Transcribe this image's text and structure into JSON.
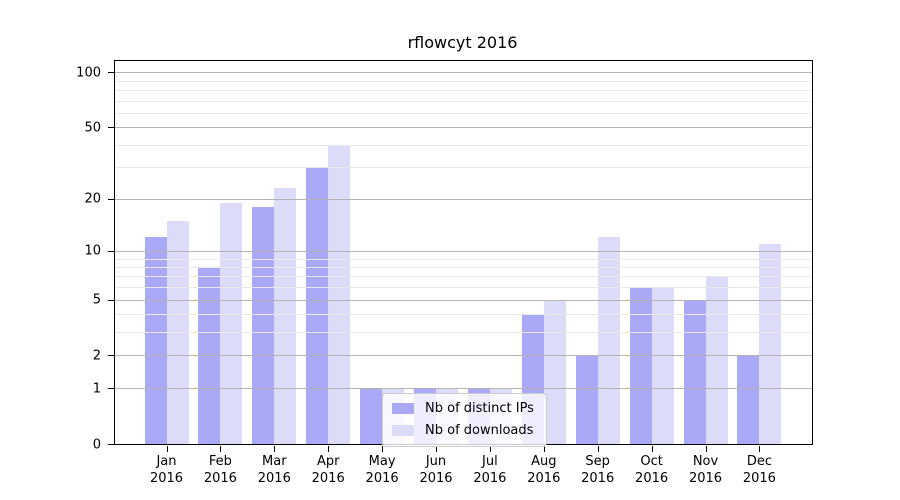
{
  "chart_data": {
    "type": "bar",
    "title": "rflowcyt 2016",
    "categories": [
      "Jan 2016",
      "Feb 2016",
      "Mar 2016",
      "Apr 2016",
      "May 2016",
      "Jun 2016",
      "Jul 2016",
      "Aug 2016",
      "Sep 2016",
      "Oct 2016",
      "Nov 2016",
      "Dec 2016"
    ],
    "series": [
      {
        "name": "Nb of distinct IPs",
        "color": "#a9a9f7",
        "values": [
          12,
          8,
          18,
          30,
          1,
          1,
          1,
          4,
          2,
          6,
          5,
          2
        ]
      },
      {
        "name": "Nb of downloads",
        "color": "#dcdcf8",
        "values": [
          15,
          19,
          23,
          40,
          1,
          1,
          1,
          5,
          12,
          6,
          7,
          11
        ]
      }
    ],
    "xlabel": "",
    "ylabel": "",
    "y_axis": {
      "scale": "log10(1+value)",
      "major_ticks": [
        0,
        1,
        2,
        5,
        10,
        20,
        50,
        100
      ],
      "minor_gridlines": [
        3,
        4,
        6,
        7,
        8,
        9,
        30,
        40,
        60,
        70,
        80,
        90
      ],
      "range": [
        0,
        115
      ]
    },
    "legend_position": "lower center",
    "grid": true
  },
  "colors": {
    "axis": "#000000",
    "grid_major": "#b4b4b4",
    "grid_minor": "#e8e8e8",
    "legend_border": "#cccccc",
    "background": "#ffffff"
  }
}
